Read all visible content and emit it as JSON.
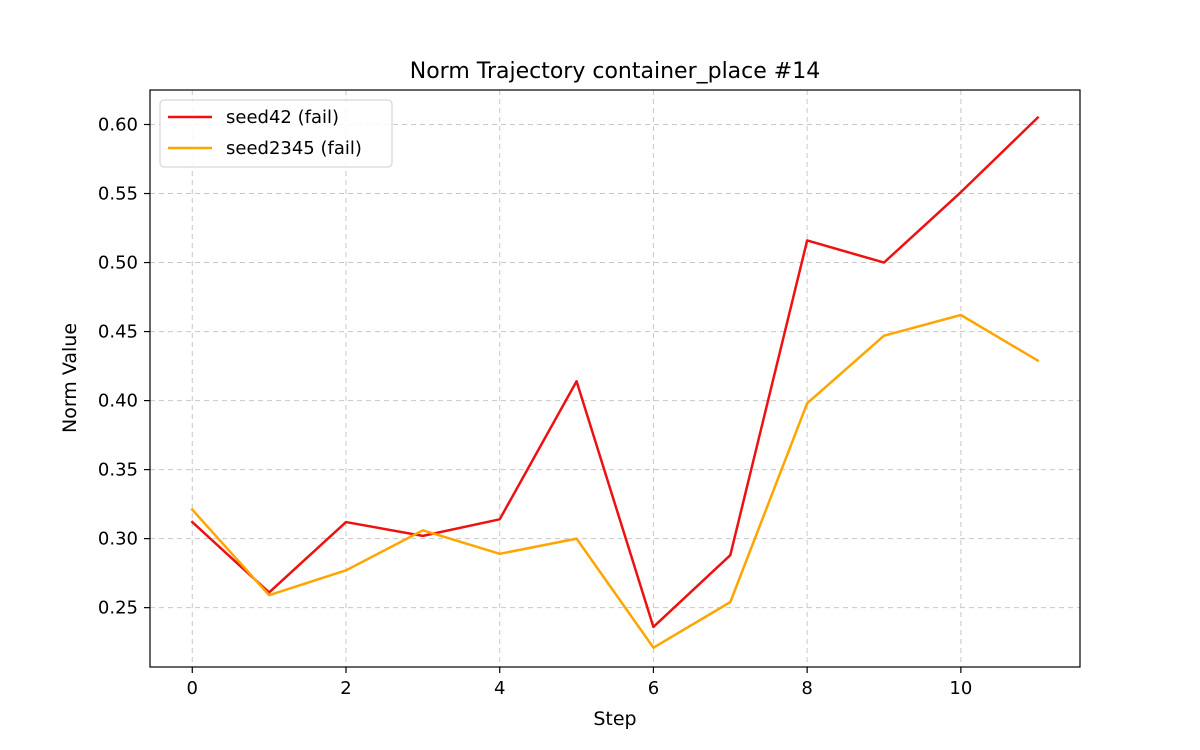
{
  "chart_data": {
    "type": "line",
    "title": "Norm Trajectory container_place #14",
    "xlabel": "Step",
    "ylabel": "Norm Value",
    "x": [
      0,
      1,
      2,
      3,
      4,
      5,
      6,
      7,
      8,
      9,
      10,
      11
    ],
    "xlim": [
      -0.55,
      11.55
    ],
    "ylim": [
      0.207,
      0.625
    ],
    "xticks": [
      0,
      2,
      4,
      6,
      8,
      10
    ],
    "xtick_labels": [
      "0",
      "2",
      "4",
      "6",
      "8",
      "10"
    ],
    "yticks": [
      0.25,
      0.3,
      0.35,
      0.4,
      0.45,
      0.5,
      0.55,
      0.6
    ],
    "ytick_labels": [
      "0.25",
      "0.30",
      "0.35",
      "0.40",
      "0.45",
      "0.50",
      "0.55",
      "0.60"
    ],
    "grid": true,
    "legend_position": "top-left",
    "series": [
      {
        "name": "seed42 (fail)",
        "color": "#ee1111",
        "values": [
          0.312,
          0.261,
          0.312,
          0.302,
          0.314,
          0.414,
          0.236,
          0.288,
          0.516,
          0.5,
          0.551,
          0.605
        ]
      },
      {
        "name": "seed2345 (fail)",
        "color": "#ffa500",
        "values": [
          0.321,
          0.259,
          0.277,
          0.306,
          0.289,
          0.3,
          0.221,
          0.254,
          0.398,
          0.447,
          0.462,
          0.429
        ]
      }
    ]
  }
}
